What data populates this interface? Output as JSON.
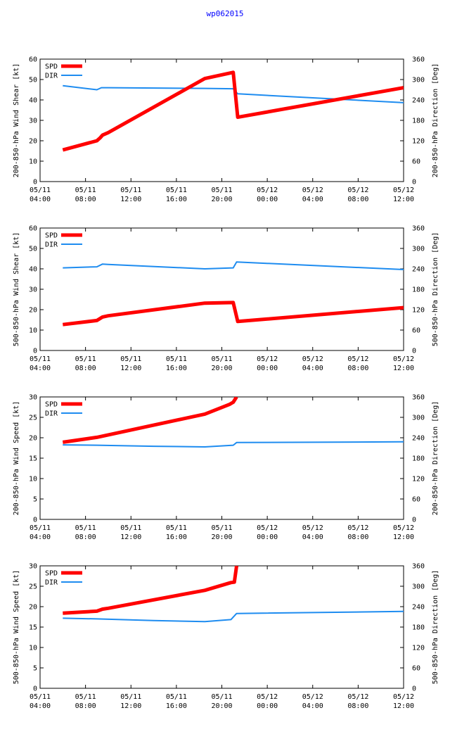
{
  "title": "wp062015",
  "colors": {
    "spd": "#ff0000",
    "dir": "#1e8cf0",
    "axis": "#000000",
    "title": "#0000ff"
  },
  "chart_data": [
    {
      "type": "line",
      "ylabel": "200-850-hPa Wind Shear [kt]",
      "y2label": "200-850-hPa Direction [Deg]",
      "ylim": [
        0,
        60
      ],
      "yticks": [
        0,
        10,
        20,
        30,
        40,
        50,
        60
      ],
      "y2lim": [
        0,
        360
      ],
      "y2ticks": [
        0,
        60,
        120,
        180,
        240,
        300,
        360
      ],
      "xlim": [
        0,
        32
      ],
      "xticks": [
        0,
        4,
        8,
        12,
        16,
        20,
        24,
        28,
        32
      ],
      "xticklabels": [
        [
          "05/11",
          "04:00"
        ],
        [
          "05/11",
          "08:00"
        ],
        [
          "05/11",
          "12:00"
        ],
        [
          "05/11",
          "16:00"
        ],
        [
          "05/11",
          "20:00"
        ],
        [
          "05/12",
          "00:00"
        ],
        [
          "05/12",
          "04:00"
        ],
        [
          "05/12",
          "08:00"
        ],
        [
          "05/12",
          "12:00"
        ]
      ],
      "legend": [
        "SPD",
        "DIR"
      ],
      "series": [
        {
          "name": "SPD",
          "axis": "left",
          "x": [
            2,
            5,
            5.3,
            5.5,
            6,
            14.5,
            17,
            17.4,
            32
          ],
          "y": [
            15.5,
            20,
            21.5,
            22.8,
            24,
            50.5,
            53.5,
            31.5,
            46
          ]
        },
        {
          "name": "DIR",
          "axis": "right",
          "x": [
            2,
            5,
            5.4,
            6,
            14.5,
            17,
            17.4,
            32
          ],
          "y": [
            282,
            270,
            276,
            276,
            274,
            273,
            258,
            232
          ]
        }
      ]
    },
    {
      "type": "line",
      "ylabel": "500-850-hPa Wind Shear [kt]",
      "y2label": "500-850-hPa Direction [Deg]",
      "ylim": [
        0,
        60
      ],
      "yticks": [
        0,
        10,
        20,
        30,
        40,
        50,
        60
      ],
      "y2lim": [
        0,
        360
      ],
      "y2ticks": [
        0,
        60,
        120,
        180,
        240,
        300,
        360
      ],
      "xlim": [
        0,
        32
      ],
      "xticks": [
        0,
        4,
        8,
        12,
        16,
        20,
        24,
        28,
        32
      ],
      "xticklabels": [
        [
          "05/11",
          "04:00"
        ],
        [
          "05/11",
          "08:00"
        ],
        [
          "05/11",
          "12:00"
        ],
        [
          "05/11",
          "16:00"
        ],
        [
          "05/11",
          "20:00"
        ],
        [
          "05/12",
          "00:00"
        ],
        [
          "05/12",
          "04:00"
        ],
        [
          "05/12",
          "08:00"
        ],
        [
          "05/12",
          "12:00"
        ]
      ],
      "legend": [
        "SPD",
        "DIR"
      ],
      "series": [
        {
          "name": "SPD",
          "axis": "left",
          "x": [
            2,
            5,
            5.5,
            6,
            14.5,
            17,
            17.4,
            32
          ],
          "y": [
            12.7,
            14.7,
            16.4,
            17,
            23.2,
            23.5,
            14.2,
            21
          ]
        },
        {
          "name": "DIR",
          "axis": "right",
          "x": [
            2,
            5,
            5.5,
            6,
            14.5,
            17,
            17.3,
            32
          ],
          "y": [
            243,
            246,
            254,
            253,
            240,
            243,
            260,
            238
          ]
        }
      ]
    },
    {
      "type": "line",
      "ylabel": "200-850-hPa Wind Speed [kt]",
      "y2label": "200-850-hPa Direction [Deg]",
      "ylim": [
        0,
        30
      ],
      "yticks": [
        0,
        5,
        10,
        15,
        20,
        25,
        30
      ],
      "y2lim": [
        0,
        360
      ],
      "y2ticks": [
        0,
        60,
        120,
        180,
        240,
        300,
        360
      ],
      "xlim": [
        0,
        32
      ],
      "xticks": [
        0,
        4,
        8,
        12,
        16,
        20,
        24,
        28,
        32
      ],
      "xticklabels": [
        [
          "05/11",
          "04:00"
        ],
        [
          "05/11",
          "08:00"
        ],
        [
          "05/11",
          "12:00"
        ],
        [
          "05/11",
          "16:00"
        ],
        [
          "05/11",
          "20:00"
        ],
        [
          "05/12",
          "00:00"
        ],
        [
          "05/12",
          "04:00"
        ],
        [
          "05/12",
          "08:00"
        ],
        [
          "05/12",
          "12:00"
        ]
      ],
      "legend": [
        "SPD",
        "DIR"
      ],
      "series": [
        {
          "name": "SPD",
          "axis": "left",
          "x": [
            2,
            5,
            14.5,
            16.7,
            17,
            17.3
          ],
          "y": [
            18.9,
            20.1,
            25.8,
            28.2,
            28.7,
            30
          ]
        },
        {
          "name": "DIR",
          "axis": "right",
          "x": [
            2,
            5,
            10,
            14.5,
            17,
            17.3,
            32
          ],
          "y": [
            219,
            218,
            215,
            213,
            218,
            226,
            228
          ]
        }
      ]
    },
    {
      "type": "line",
      "ylabel": "500-850-hPa Wind Speed [kt]",
      "y2label": "500-850-hPa Direction [Deg]",
      "ylim": [
        0,
        30
      ],
      "yticks": [
        0,
        5,
        10,
        15,
        20,
        25,
        30
      ],
      "y2lim": [
        0,
        360
      ],
      "y2ticks": [
        0,
        60,
        120,
        180,
        240,
        300,
        360
      ],
      "xlim": [
        0,
        32
      ],
      "xticks": [
        0,
        4,
        8,
        12,
        16,
        20,
        24,
        28,
        32
      ],
      "xticklabels": [
        [
          "05/11",
          "04:00"
        ],
        [
          "05/11",
          "08:00"
        ],
        [
          "05/11",
          "12:00"
        ],
        [
          "05/11",
          "16:00"
        ],
        [
          "05/11",
          "20:00"
        ],
        [
          "05/12",
          "00:00"
        ],
        [
          "05/12",
          "04:00"
        ],
        [
          "05/12",
          "08:00"
        ],
        [
          "05/12",
          "12:00"
        ]
      ],
      "legend": [
        "SPD",
        "DIR"
      ],
      "series": [
        {
          "name": "SPD",
          "axis": "left",
          "x": [
            2,
            5,
            5.5,
            6,
            14.5,
            16.8,
            17.1,
            17.3
          ],
          "y": [
            18.4,
            18.9,
            19.4,
            19.6,
            24,
            25.9,
            26,
            30
          ]
        },
        {
          "name": "DIR",
          "axis": "right",
          "x": [
            2,
            5,
            10,
            14.5,
            16.8,
            17.3,
            32
          ],
          "y": [
            206,
            204,
            199,
            196,
            202,
            220,
            226
          ]
        }
      ]
    }
  ]
}
